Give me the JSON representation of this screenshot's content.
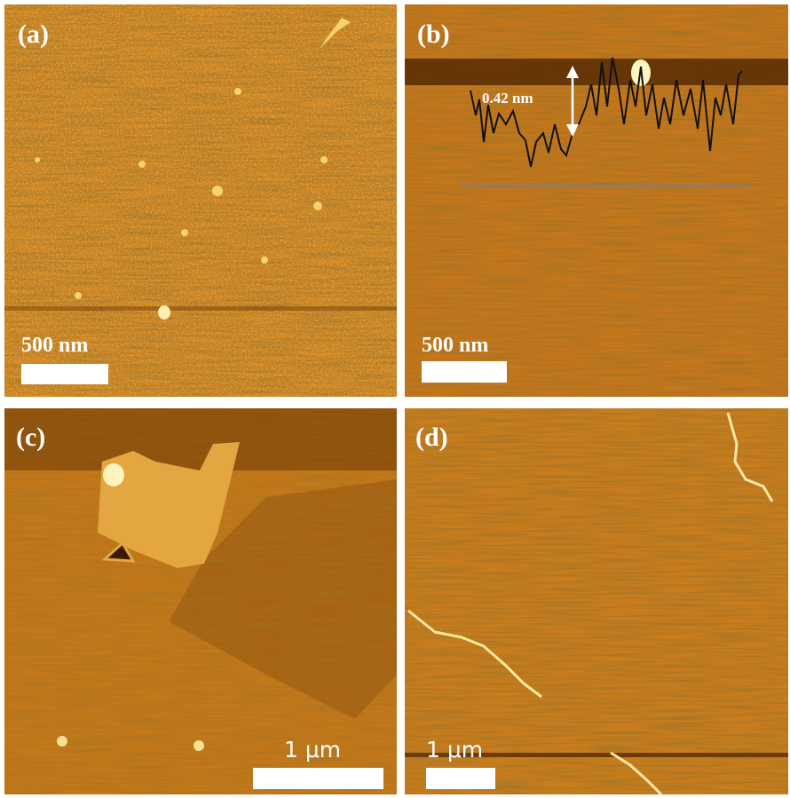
{
  "panels": [
    {
      "label": "(a)",
      "scale_bar": "500 nm"
    },
    {
      "label": "(b)",
      "scale_bar": "500 nm",
      "annotation": "0.42 nm"
    },
    {
      "label": "(c)",
      "scale_bar": "1 μm"
    },
    {
      "label": "(d)",
      "scale_bar": "1 μm"
    }
  ]
}
